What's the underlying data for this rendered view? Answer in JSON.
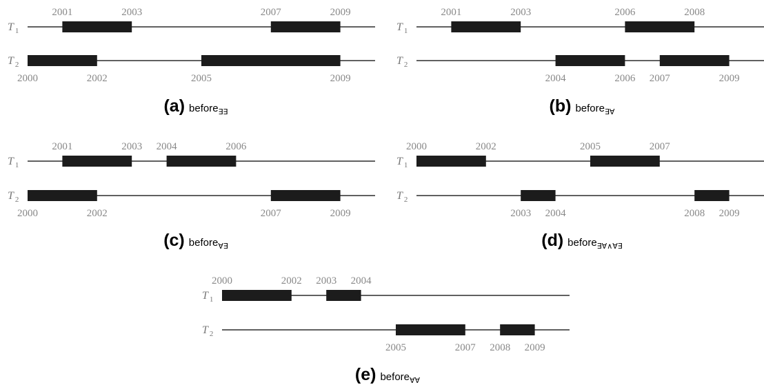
{
  "panels": [
    {
      "id": "a",
      "caption": {
        "letter": "(a)",
        "word": "before",
        "subscript": "∃∃"
      },
      "rows": [
        {
          "label": "T",
          "sub": "1",
          "intervals": [
            [
              2001,
              2003
            ],
            [
              2007,
              2009
            ]
          ],
          "ticks_position": "above",
          "ticks": [
            "2001",
            "2003",
            "2007",
            "2009"
          ]
        },
        {
          "label": "T",
          "sub": "2",
          "intervals": [
            [
              2000,
              2002
            ],
            [
              2005,
              2009
            ]
          ],
          "ticks_position": "below",
          "ticks": [
            "2000",
            "2002",
            "2005",
            "2009"
          ]
        }
      ]
    },
    {
      "id": "b",
      "caption": {
        "letter": "(b)",
        "word": "before",
        "subscript": "∃∀"
      },
      "rows": [
        {
          "label": "T",
          "sub": "1",
          "intervals": [
            [
              2001,
              2003
            ],
            [
              2006,
              2008
            ]
          ],
          "ticks_position": "above",
          "ticks": [
            "2001",
            "2003",
            "2006",
            "2008"
          ]
        },
        {
          "label": "T",
          "sub": "2",
          "intervals": [
            [
              2004,
              2006
            ],
            [
              2007,
              2009
            ]
          ],
          "ticks_position": "below",
          "ticks": [
            "2004",
            "2006",
            "2007",
            "2009"
          ]
        }
      ]
    },
    {
      "id": "c",
      "caption": {
        "letter": "(c)",
        "word": "before",
        "subscript": "∀∃"
      },
      "rows": [
        {
          "label": "T",
          "sub": "1",
          "intervals": [
            [
              2001,
              2003
            ],
            [
              2004,
              2006
            ]
          ],
          "ticks_position": "above",
          "ticks": [
            "2001",
            "2003",
            "2004",
            "2006"
          ]
        },
        {
          "label": "T",
          "sub": "2",
          "intervals": [
            [
              2000,
              2002
            ],
            [
              2007,
              2009
            ]
          ],
          "ticks_position": "below",
          "ticks": [
            "2000",
            "2002",
            "2007",
            "2009"
          ]
        }
      ]
    },
    {
      "id": "d",
      "caption": {
        "letter": "(d)",
        "word": "before",
        "subscript": "∃∀∧∀∃"
      },
      "rows": [
        {
          "label": "T",
          "sub": "1",
          "intervals": [
            [
              2000,
              2002
            ],
            [
              2005,
              2007
            ]
          ],
          "ticks_position": "above",
          "ticks": [
            "2000",
            "2002",
            "2005",
            "2007"
          ]
        },
        {
          "label": "T",
          "sub": "2",
          "intervals": [
            [
              2003,
              2004
            ],
            [
              2008,
              2009
            ]
          ],
          "ticks_position": "below",
          "ticks": [
            "2003",
            "2004",
            "2008",
            "2009"
          ]
        }
      ]
    },
    {
      "id": "e",
      "caption": {
        "letter": "(e)",
        "word": "before",
        "subscript": "∀∀"
      },
      "rows": [
        {
          "label": "T",
          "sub": "1",
          "intervals": [
            [
              2000,
              2002
            ],
            [
              2003,
              2004
            ]
          ],
          "ticks_position": "above",
          "ticks": [
            "2000",
            "2002",
            "2003",
            "2004"
          ]
        },
        {
          "label": "T",
          "sub": "2",
          "intervals": [
            [
              2005,
              2007
            ],
            [
              2008,
              2009
            ]
          ],
          "ticks_position": "below",
          "ticks": [
            "2005",
            "2007",
            "2008",
            "2009"
          ]
        }
      ]
    }
  ],
  "timeline": {
    "start": 2000,
    "end": 2010
  },
  "colors": {
    "bar": "#1c1c1c",
    "line": "#000000",
    "ticks": "#888888",
    "row_label": "#777777",
    "caption": "#000000"
  }
}
